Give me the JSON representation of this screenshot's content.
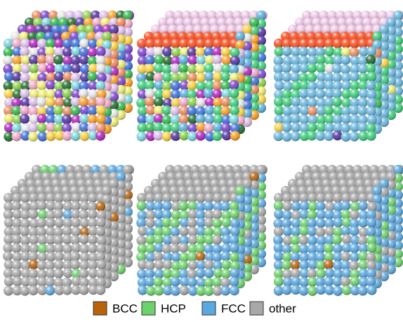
{
  "legend": {
    "items": [
      {
        "label": "BCC",
        "color": "#b8620a"
      },
      {
        "label": "HCP",
        "color": "#6cd36c"
      },
      {
        "label": "FCC",
        "color": "#5aa8e0"
      },
      {
        "label": "other",
        "color": "#a8a8a8"
      }
    ]
  }
}
